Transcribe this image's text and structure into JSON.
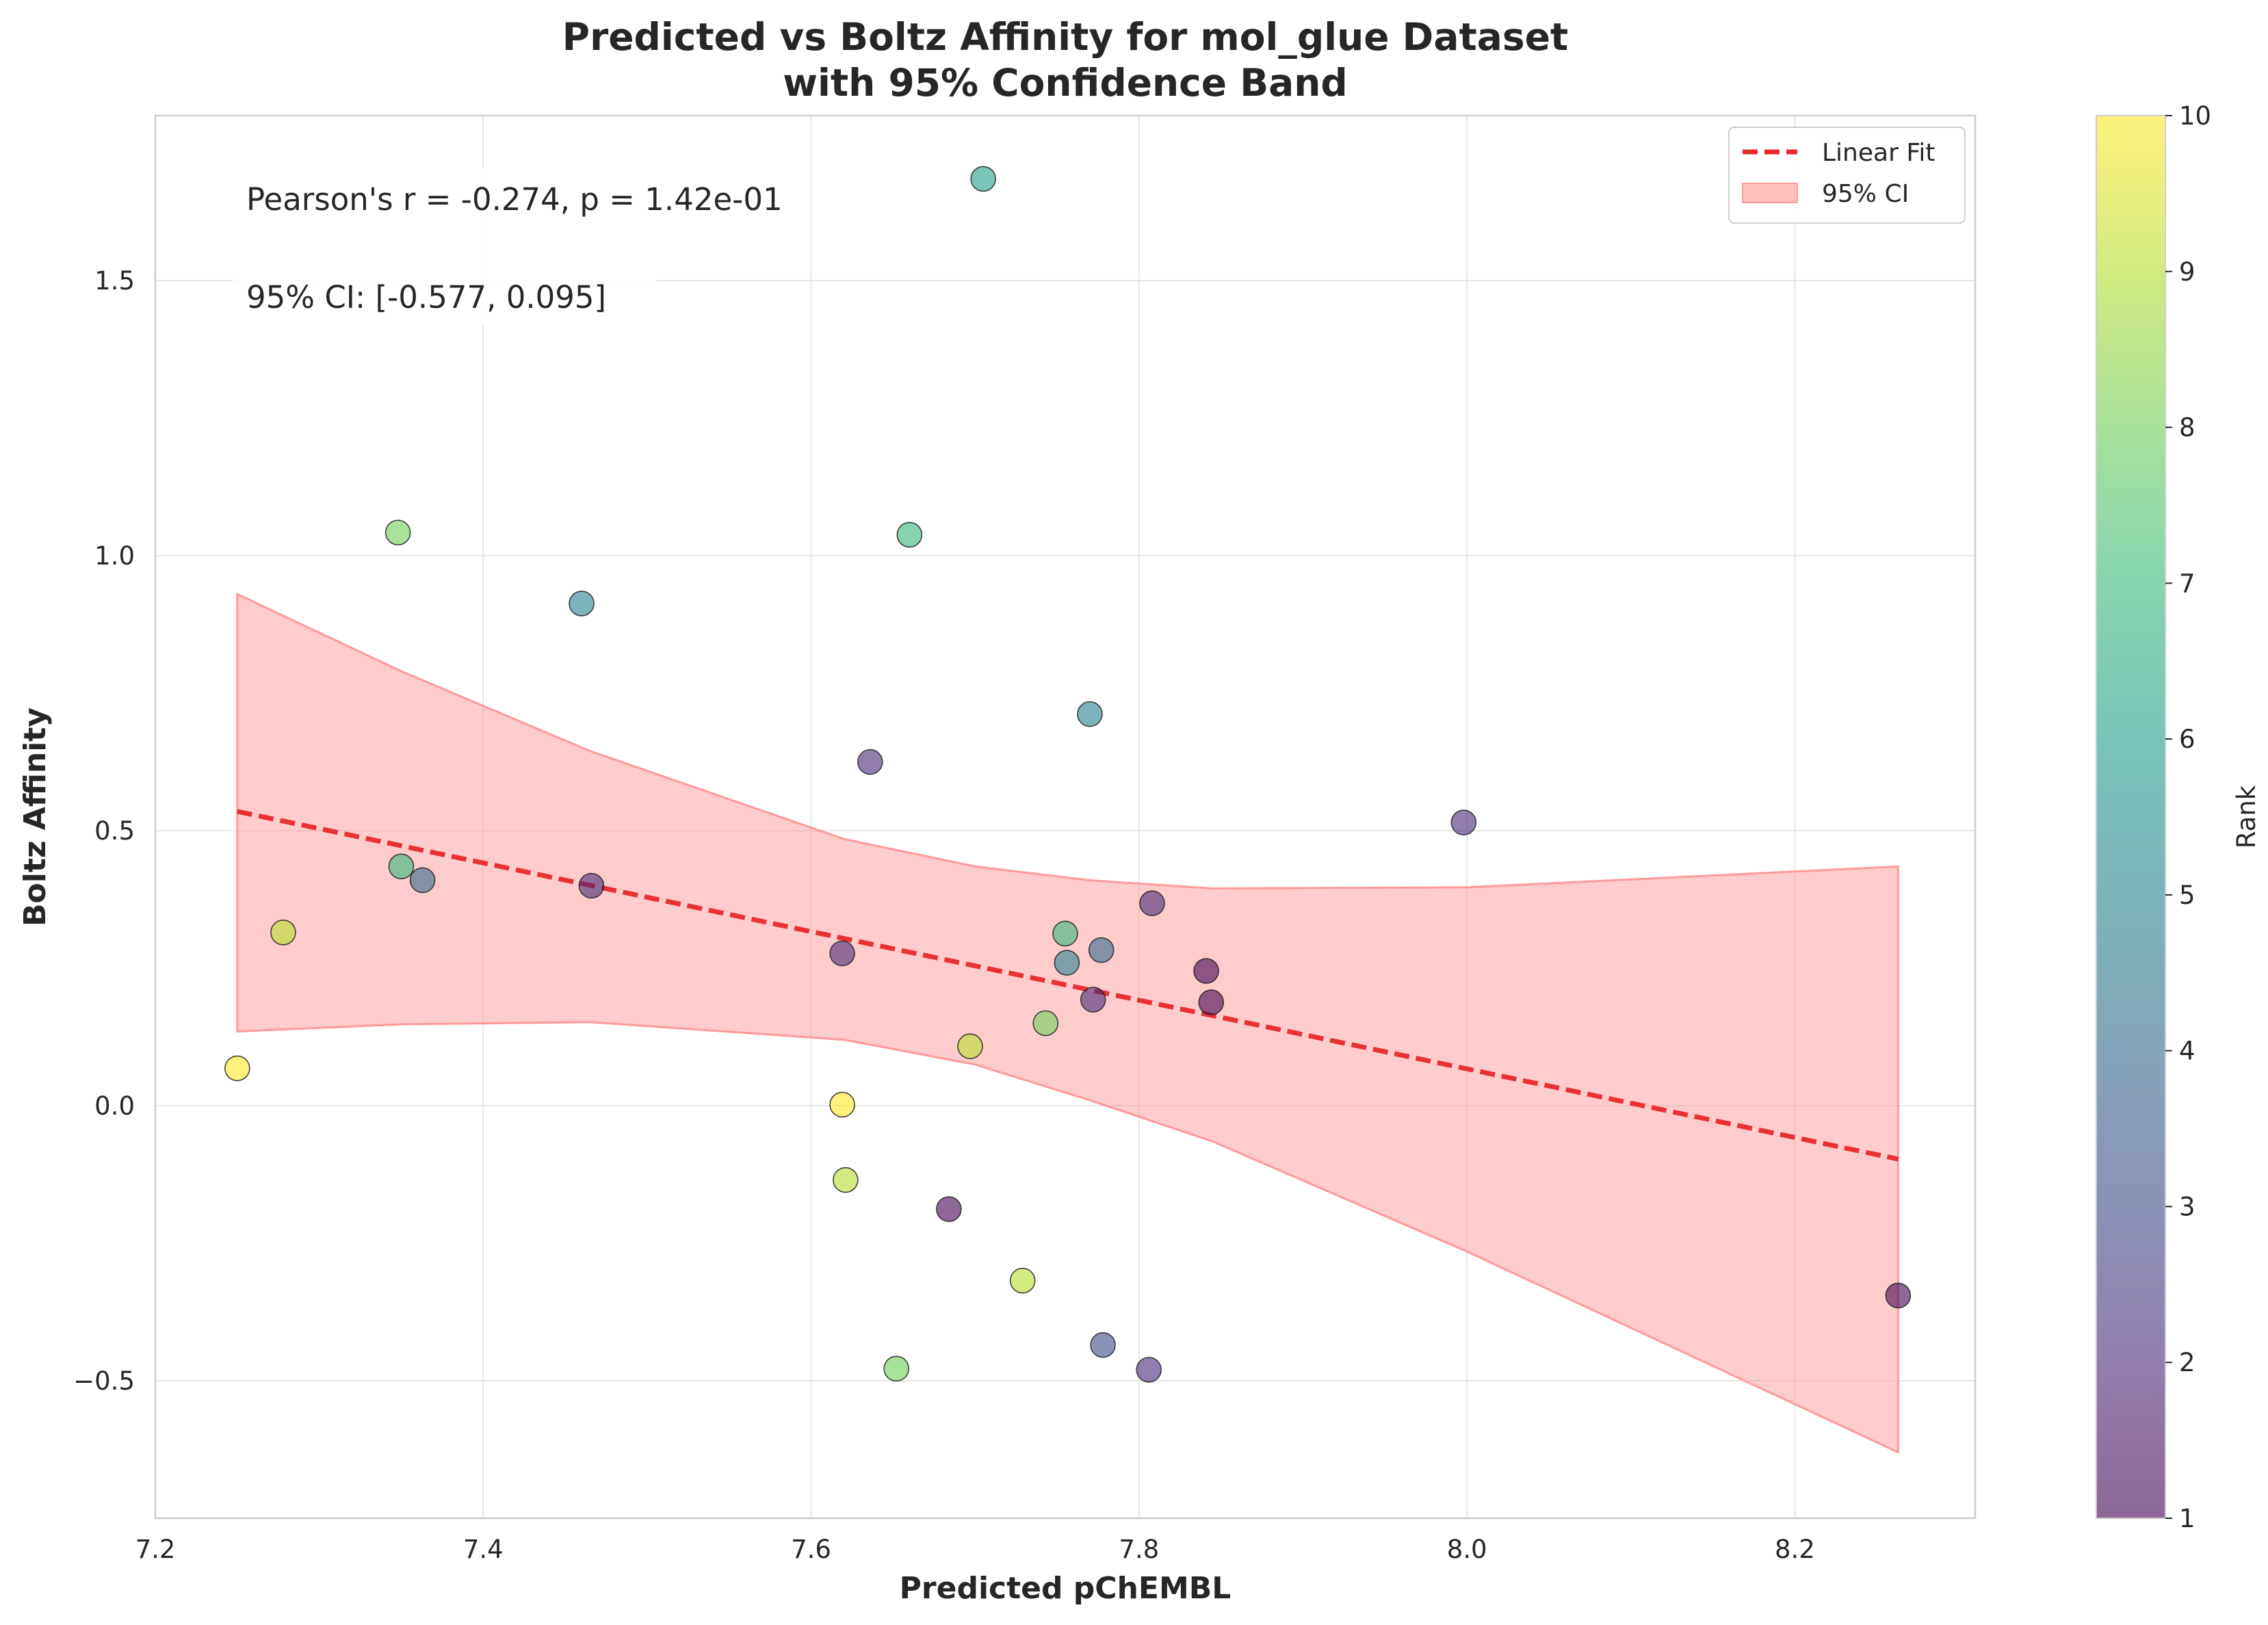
{
  "chart_data": {
    "type": "scatter",
    "title_lines": [
      "Predicted vs Boltz Affinity for mol_glue Dataset",
      "with 95% Confidence Band"
    ],
    "xlabel": "Predicted pChEMBL",
    "ylabel": "Boltz Affinity",
    "xlim": [
      7.2,
      8.31
    ],
    "ylim": [
      -0.75,
      1.8
    ],
    "xticks": [
      7.2,
      7.4,
      7.6,
      7.8,
      8.0,
      8.2
    ],
    "xtick_labels": [
      "7.2",
      "7.4",
      "7.6",
      "7.8",
      "8.0",
      "8.2"
    ],
    "yticks": [
      -0.5,
      0.0,
      0.5,
      1.0,
      1.5
    ],
    "ytick_labels": [
      "−0.5",
      "0.0",
      "0.5",
      "1.0",
      "1.5"
    ],
    "grid": true,
    "annotations": [
      "Pearson's r = -0.274, p = 1.42e-01",
      "95% CI: [-0.577, 0.095]"
    ],
    "legend": {
      "position": "top-right",
      "items": [
        {
          "label": "Linear Fit",
          "kind": "dashed-line",
          "color": "#e8282b"
        },
        {
          "label": "95% CI",
          "kind": "patch",
          "color": "#ffc0c0"
        }
      ]
    },
    "fit_line": {
      "x": [
        7.25,
        8.263
      ],
      "y": [
        0.535,
        -0.097
      ],
      "color": "#e8282b"
    },
    "ci_band": {
      "x": [
        7.25,
        7.35,
        7.465,
        7.62,
        7.7,
        7.77,
        7.845,
        8.0,
        8.263
      ],
      "upper": [
        0.93,
        0.79,
        0.645,
        0.485,
        0.435,
        0.41,
        0.395,
        0.397,
        0.435
      ],
      "lower": [
        0.135,
        0.148,
        0.152,
        0.12,
        0.075,
        0.01,
        -0.065,
        -0.265,
        -0.63
      ],
      "color": "#ff9999"
    },
    "colorbar": {
      "label": "Rank",
      "min": 1,
      "max": 10,
      "ticks": [
        1,
        2,
        3,
        4,
        5,
        6,
        7,
        8,
        9,
        10
      ],
      "colormap": "viridis",
      "alpha": 0.6
    },
    "points": [
      {
        "x": 7.705,
        "y": 1.685,
        "rank": 6
      },
      {
        "x": 7.348,
        "y": 1.042,
        "rank": 8
      },
      {
        "x": 7.66,
        "y": 1.038,
        "rank": 7
      },
      {
        "x": 7.46,
        "y": 0.913,
        "rank": 5
      },
      {
        "x": 7.77,
        "y": 0.712,
        "rank": 5
      },
      {
        "x": 7.636,
        "y": 0.625,
        "rank": 2
      },
      {
        "x": 7.998,
        "y": 0.515,
        "rank": 2
      },
      {
        "x": 7.35,
        "y": 0.435,
        "rank": 7
      },
      {
        "x": 7.363,
        "y": 0.41,
        "rank": 4
      },
      {
        "x": 7.466,
        "y": 0.4,
        "rank": 2
      },
      {
        "x": 7.808,
        "y": 0.368,
        "rank": 2
      },
      {
        "x": 7.278,
        "y": 0.315,
        "rank": 9
      },
      {
        "x": 7.755,
        "y": 0.313,
        "rank": 7
      },
      {
        "x": 7.777,
        "y": 0.283,
        "rank": 4
      },
      {
        "x": 7.619,
        "y": 0.277,
        "rank": 2
      },
      {
        "x": 7.756,
        "y": 0.26,
        "rank": 5
      },
      {
        "x": 7.841,
        "y": 0.245,
        "rank": 1
      },
      {
        "x": 7.772,
        "y": 0.193,
        "rank": 2
      },
      {
        "x": 7.844,
        "y": 0.188,
        "rank": 1
      },
      {
        "x": 7.743,
        "y": 0.15,
        "rank": 8
      },
      {
        "x": 7.697,
        "y": 0.108,
        "rank": 9
      },
      {
        "x": 7.25,
        "y": 0.068,
        "rank": 10
      },
      {
        "x": 7.619,
        "y": 0.002,
        "rank": 10
      },
      {
        "x": 7.621,
        "y": -0.135,
        "rank": 9
      },
      {
        "x": 7.684,
        "y": -0.188,
        "rank": 1
      },
      {
        "x": 7.729,
        "y": -0.318,
        "rank": 9
      },
      {
        "x": 8.263,
        "y": -0.345,
        "rank": 1
      },
      {
        "x": 7.778,
        "y": -0.435,
        "rank": 3
      },
      {
        "x": 7.652,
        "y": -0.478,
        "rank": 8
      },
      {
        "x": 7.806,
        "y": -0.48,
        "rank": 2
      }
    ]
  }
}
